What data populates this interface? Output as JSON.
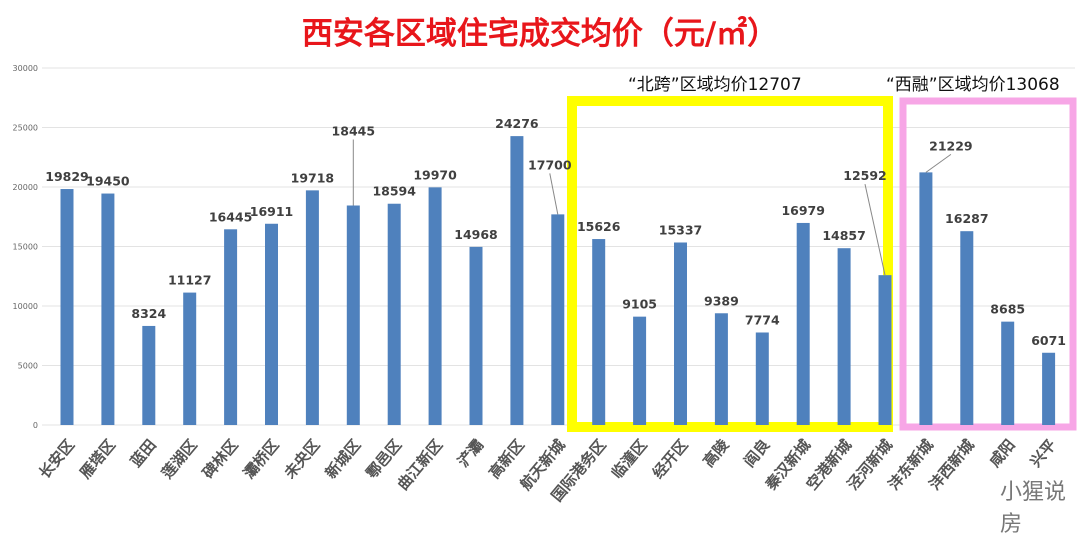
{
  "chart_data": {
    "type": "bar",
    "title": "西安各区域住宅成交均价（元/㎡）",
    "categories": [
      "长安区",
      "雁塔区",
      "蓝田",
      "莲湖区",
      "碑林区",
      "灞桥区",
      "未央区",
      "新城区",
      "鄠邑区",
      "曲江新区",
      "浐灞",
      "高新区",
      "航天新城",
      "国际港务区",
      "临潼区",
      "经开区",
      "高陵",
      "阎良",
      "秦汉新城",
      "空港新城",
      "泾河新城",
      "沣东新城",
      "沣西新城",
      "咸阳",
      "兴平"
    ],
    "values": [
      19829,
      19450,
      8324,
      11127,
      16445,
      16911,
      19718,
      18445,
      18594,
      19970,
      14968,
      24276,
      17700,
      15626,
      9105,
      15337,
      9389,
      7774,
      16979,
      14857,
      12592,
      21229,
      16287,
      8685,
      6071
    ],
    "ylim": [
      0,
      30000
    ],
    "yticks": [
      0,
      5000,
      10000,
      15000,
      20000,
      25000,
      30000
    ],
    "grid": true,
    "bar_color": "#4f81bd",
    "annotations": [
      {
        "text": "“北跨”区域均价12707",
        "box_color": "#ffff00",
        "range": [
          "国际港务区",
          "泾河新城"
        ]
      },
      {
        "text": "“西融”区域均价13068",
        "box_color": "#f7a6e6",
        "range": [
          "沣东新城",
          "兴平"
        ]
      }
    ]
  },
  "watermark": "小猩说房"
}
